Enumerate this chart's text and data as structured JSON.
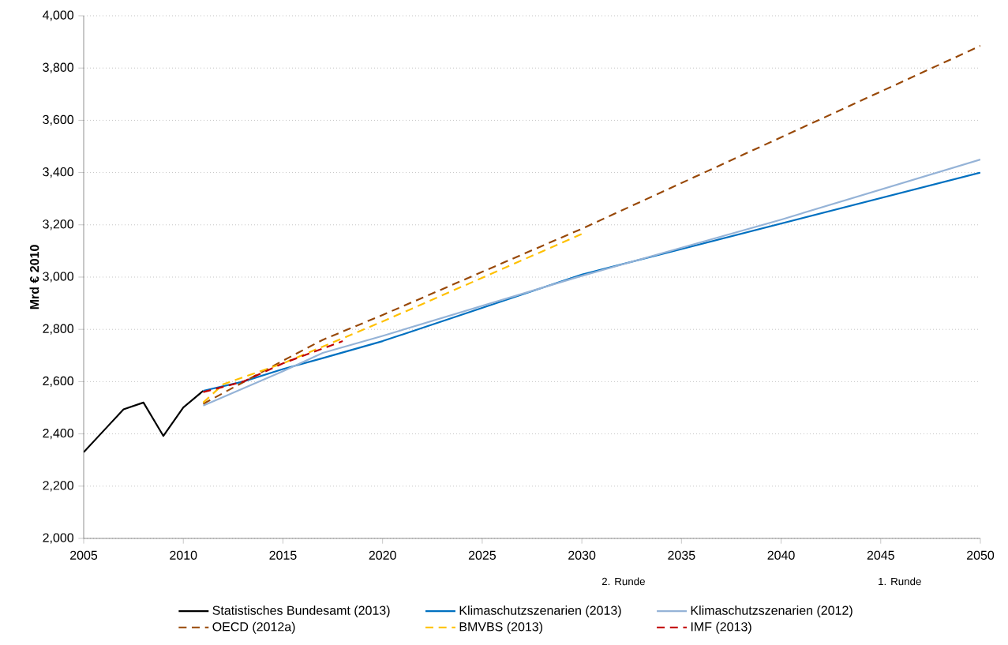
{
  "chart_data": {
    "type": "line",
    "ylabel": "Mrd € 2010",
    "xlim": [
      2005,
      2050
    ],
    "xticks": [
      2005,
      2010,
      2015,
      2020,
      2025,
      2030,
      2035,
      2040,
      2045,
      2050
    ],
    "ylim": [
      2000,
      4000
    ],
    "yticks": [
      {
        "value": 2000,
        "label": "2,000"
      },
      {
        "value": 2200,
        "label": "2,200"
      },
      {
        "value": 2400,
        "label": "2,400"
      },
      {
        "value": 2600,
        "label": "2,600"
      },
      {
        "value": 2800,
        "label": "2,800"
      },
      {
        "value": 3000,
        "label": "3,000"
      },
      {
        "value": 3200,
        "label": "3,200"
      },
      {
        "value": 3400,
        "label": "3,400"
      },
      {
        "value": 3600,
        "label": "3,600"
      },
      {
        "value": 3800,
        "label": "3,800"
      },
      {
        "value": 4000,
        "label": "4,000"
      }
    ],
    "grid": "y",
    "legend": "bottom",
    "marker": "none",
    "annotations": [
      "2. Runde",
      "1. Runde"
    ],
    "series": [
      {
        "name": "Statistisches Bundesamt (2013)",
        "color": "#000000",
        "line_style": "solid",
        "x": [
          2005,
          2006,
          2007,
          2008,
          2009,
          2010,
          2011
        ],
        "values": [
          2330,
          2412,
          2494,
          2520,
          2392,
          2501,
          2565
        ]
      },
      {
        "name": "Klimaschutzszenarien (2013)",
        "color": "#0070c0",
        "line_style": "solid",
        "x": [
          2011,
          2013,
          2015,
          2017,
          2020,
          2030,
          2040,
          2050
        ],
        "values": [
          2565,
          2600,
          2648,
          2690,
          2755,
          3010,
          3205,
          3400
        ]
      },
      {
        "name": "Klimaschutzszenarien (2012)",
        "color": "#95b3d7",
        "line_style": "solid",
        "x": [
          2011,
          2015,
          2017,
          2020,
          2030,
          2040,
          2050
        ],
        "values": [
          2508,
          2640,
          2710,
          2775,
          3005,
          3220,
          3450
        ]
      },
      {
        "name": "OECD (2012a)",
        "color": "#984807",
        "line_style": "dashed",
        "x": [
          2011,
          2015,
          2017,
          2020,
          2030,
          2050
        ],
        "values": [
          2515,
          2680,
          2760,
          2855,
          3185,
          3885
        ]
      },
      {
        "name": "BMVBS (2013)",
        "color": "#ffc000",
        "line_style": "dashed",
        "x": [
          2011,
          2012,
          2015,
          2020,
          2030
        ],
        "values": [
          2520,
          2590,
          2670,
          2830,
          3165
        ]
      },
      {
        "name": "IMF (2013)",
        "color": "#c00000",
        "line_style": "dashed",
        "x": [
          2011,
          2013,
          2015,
          2018
        ],
        "values": [
          2560,
          2600,
          2670,
          2755
        ]
      }
    ]
  }
}
